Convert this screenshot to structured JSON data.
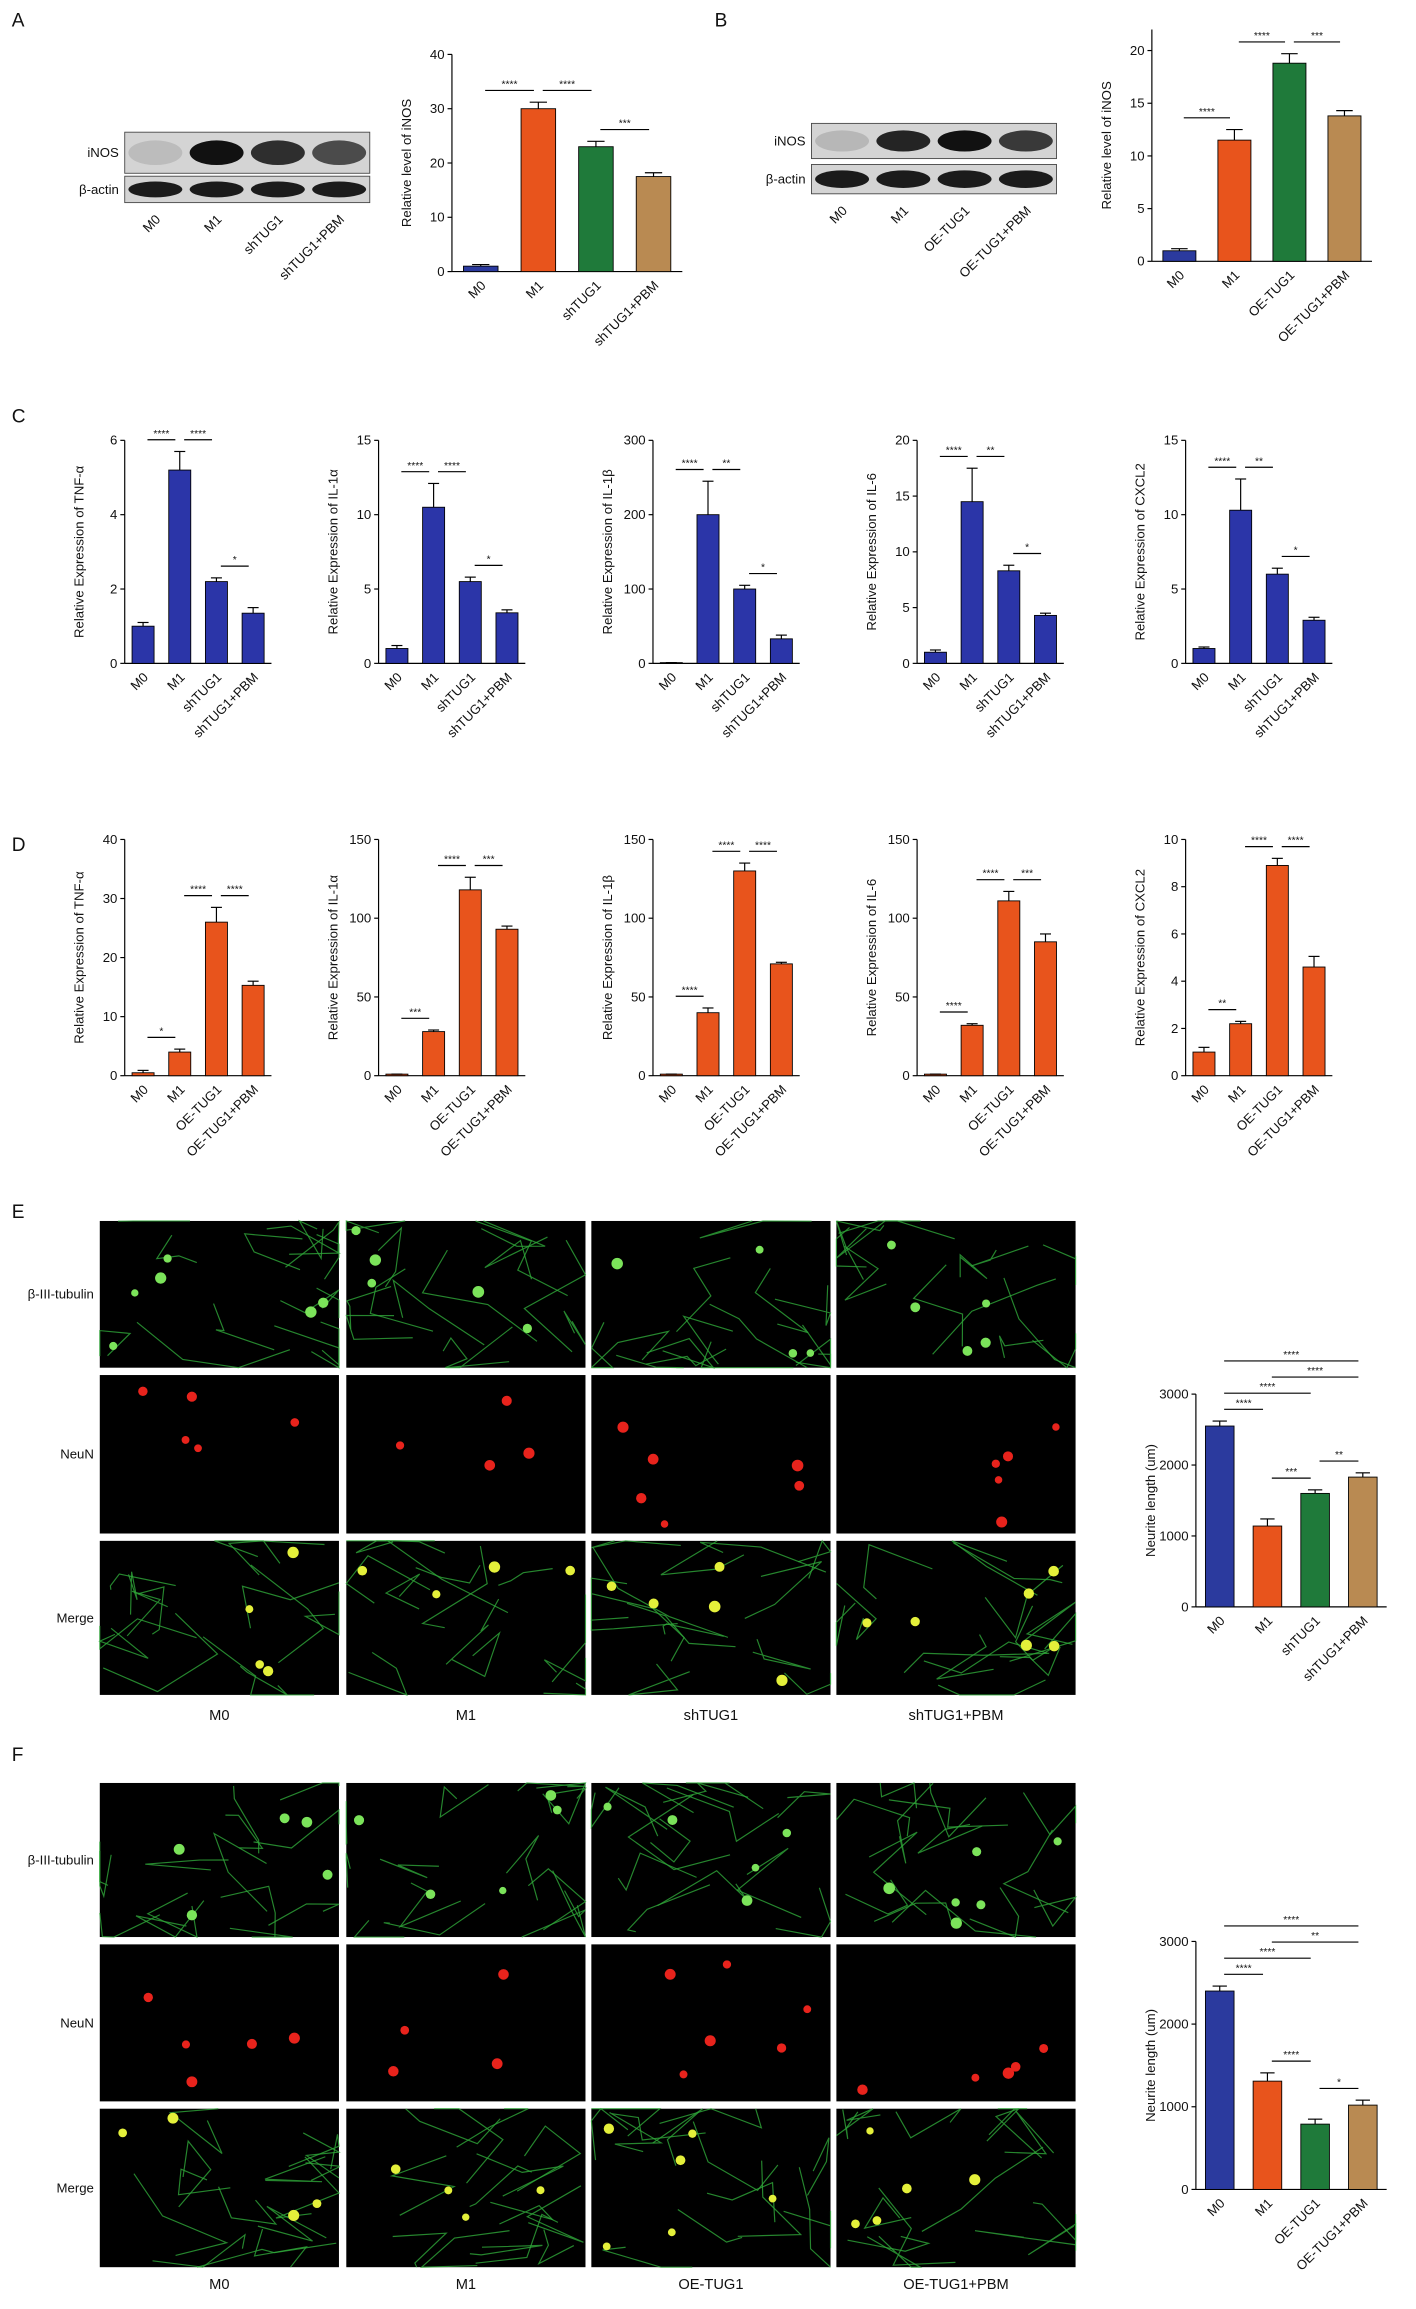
{
  "panel_labels": [
    "A",
    "B",
    "C",
    "D",
    "E",
    "F"
  ],
  "blots": [
    {
      "rows": [
        "iNOS",
        "β-actin"
      ],
      "lanes": [
        "M0",
        "M1",
        "shTUG1",
        "shTUG1+PBM"
      ]
    },
    {
      "rows": [
        "iNOS",
        "β-actin"
      ],
      "lanes": [
        "M0",
        "M1",
        "OE-TUG1",
        "OE-TUG1+PBM"
      ]
    }
  ],
  "micrographs": [
    {
      "rows": [
        "β-III-tubulin",
        "NeuN",
        "Merge"
      ],
      "columns": [
        "M0",
        "M1",
        "shTUG1",
        "shTUG1+PBM"
      ]
    },
    {
      "rows": [
        "β-III-tubulin",
        "NeuN",
        "Merge"
      ],
      "columns": [
        "M0",
        "M1",
        "OE-TUG1",
        "OE-TUG1+PBM"
      ]
    }
  ],
  "chart_data": [
    {
      "type": "bar",
      "y_label": "Relative  level of iNOS",
      "categories": [
        "M0",
        "M1",
        "shTUG1",
        "shTUG1+PBM"
      ],
      "values": [
        1,
        30,
        23,
        17.5
      ],
      "errors": [
        0.3,
        1.2,
        1,
        0.7
      ],
      "colors": [
        "#2b3a9e",
        "#e8541c",
        "#1f7a3a",
        "#b98a52"
      ],
      "ylim": [
        0,
        40
      ],
      "yticks": [
        0,
        10,
        20,
        30,
        40
      ],
      "significance": [
        {
          "between": [
            0,
            1
          ],
          "label": "****"
        },
        {
          "between": [
            1,
            2
          ],
          "label": "****"
        },
        {
          "between": [
            2,
            3
          ],
          "label": "***"
        }
      ]
    },
    {
      "type": "bar",
      "y_label": "Relative  level of iNOS",
      "categories": [
        "M0",
        "M1",
        "OE-TUG1",
        "OE-TUG1+PBM"
      ],
      "values": [
        1,
        11.5,
        18.8,
        13.8
      ],
      "errors": [
        0.2,
        1,
        0.9,
        0.5
      ],
      "colors": [
        "#2b3a9e",
        "#e8541c",
        "#1f7a3a",
        "#b98a52"
      ],
      "ylim": [
        0,
        22
      ],
      "yticks": [
        0,
        5,
        10,
        15,
        20
      ],
      "significance": [
        {
          "between": [
            0,
            1
          ],
          "label": "****"
        },
        {
          "between": [
            1,
            2
          ],
          "label": "****"
        },
        {
          "between": [
            2,
            3
          ],
          "label": "***"
        }
      ]
    },
    {
      "type": "bar",
      "y_label": "Relative Expression of TNF-α",
      "categories": [
        "M0",
        "M1",
        "shTUG1",
        "shTUG1+PBM"
      ],
      "values": [
        1,
        5.2,
        2.2,
        1.35
      ],
      "errors": [
        0.1,
        0.5,
        0.1,
        0.15
      ],
      "colors": [
        "#2b35a8",
        "#2b35a8",
        "#2b35a8",
        "#2b35a8"
      ],
      "ylim": [
        0,
        6
      ],
      "yticks": [
        0,
        2,
        4,
        6
      ],
      "significance": [
        {
          "between": [
            0,
            1
          ],
          "label": "****"
        },
        {
          "between": [
            1,
            2
          ],
          "label": "****"
        },
        {
          "between": [
            2,
            3
          ],
          "label": "*"
        }
      ]
    },
    {
      "type": "bar",
      "y_label": "Relative Expression of IL-1α",
      "categories": [
        "M0",
        "M1",
        "shTUG1",
        "shTUG1+PBM"
      ],
      "values": [
        1,
        10.5,
        5.5,
        3.4
      ],
      "errors": [
        0.2,
        1.6,
        0.3,
        0.2
      ],
      "colors": [
        "#2b35a8",
        "#2b35a8",
        "#2b35a8",
        "#2b35a8"
      ],
      "ylim": [
        0,
        15
      ],
      "yticks": [
        0,
        5,
        10,
        15
      ],
      "significance": [
        {
          "between": [
            0,
            1
          ],
          "label": "****"
        },
        {
          "between": [
            1,
            2
          ],
          "label": "****"
        },
        {
          "between": [
            2,
            3
          ],
          "label": "*"
        }
      ]
    },
    {
      "type": "bar",
      "y_label": "Relative Expression of IL-1β",
      "categories": [
        "M0",
        "M1",
        "shTUG1",
        "shTUG1+PBM"
      ],
      "values": [
        1,
        200,
        100,
        33
      ],
      "errors": [
        0,
        45,
        5,
        5
      ],
      "colors": [
        "#2b35a8",
        "#2b35a8",
        "#2b35a8",
        "#2b35a8"
      ],
      "ylim": [
        0,
        300
      ],
      "yticks": [
        0,
        100,
        200,
        300
      ],
      "significance": [
        {
          "between": [
            0,
            1
          ],
          "label": "****"
        },
        {
          "between": [
            1,
            2
          ],
          "label": "**"
        },
        {
          "between": [
            2,
            3
          ],
          "label": "*"
        }
      ]
    },
    {
      "type": "bar",
      "y_label": "Relative Expression of IL-6",
      "categories": [
        "M0",
        "M1",
        "shTUG1",
        "shTUG1+PBM"
      ],
      "values": [
        1,
        14.5,
        8.3,
        4.3
      ],
      "errors": [
        0.2,
        3,
        0.5,
        0.2
      ],
      "colors": [
        "#2b35a8",
        "#2b35a8",
        "#2b35a8",
        "#2b35a8"
      ],
      "ylim": [
        0,
        20
      ],
      "yticks": [
        0,
        5,
        10,
        15,
        20
      ],
      "significance": [
        {
          "between": [
            0,
            1
          ],
          "label": "****"
        },
        {
          "between": [
            1,
            2
          ],
          "label": "**"
        },
        {
          "between": [
            2,
            3
          ],
          "label": "*"
        }
      ]
    },
    {
      "type": "bar",
      "y_label": "Relative Expression of CXCL2",
      "categories": [
        "M0",
        "M1",
        "shTUG1",
        "shTUG1+PBM"
      ],
      "values": [
        1,
        10.3,
        6,
        2.9
      ],
      "errors": [
        0.1,
        2.1,
        0.4,
        0.2
      ],
      "colors": [
        "#2b35a8",
        "#2b35a8",
        "#2b35a8",
        "#2b35a8"
      ],
      "ylim": [
        0,
        15
      ],
      "yticks": [
        0,
        5,
        10,
        15
      ],
      "significance": [
        {
          "between": [
            0,
            1
          ],
          "label": "****"
        },
        {
          "between": [
            1,
            2
          ],
          "label": "**"
        },
        {
          "between": [
            2,
            3
          ],
          "label": "*"
        }
      ]
    },
    {
      "type": "bar",
      "y_label": "Relative Expression of TNF-α",
      "categories": [
        "M0",
        "M1",
        "OE-TUG1",
        "OE-TUG1+PBM"
      ],
      "values": [
        0.5,
        4,
        26,
        15.3
      ],
      "errors": [
        0.4,
        0.5,
        2.5,
        0.7
      ],
      "colors": [
        "#e8541c",
        "#e8541c",
        "#e8541c",
        "#e8541c"
      ],
      "ylim": [
        0,
        40
      ],
      "yticks": [
        0,
        10,
        20,
        30,
        40
      ],
      "significance": [
        {
          "between": [
            0,
            1
          ],
          "label": "*"
        },
        {
          "between": [
            1,
            2
          ],
          "label": "****"
        },
        {
          "between": [
            2,
            3
          ],
          "label": "****"
        }
      ]
    },
    {
      "type": "bar",
      "y_label": "Relative Expression of IL-1α",
      "categories": [
        "M0",
        "M1",
        "OE-TUG1",
        "OE-TUG1+PBM"
      ],
      "values": [
        1,
        28,
        118,
        93
      ],
      "errors": [
        0,
        1,
        8,
        2
      ],
      "colors": [
        "#e8541c",
        "#e8541c",
        "#e8541c",
        "#e8541c"
      ],
      "ylim": [
        0,
        150
      ],
      "yticks": [
        0,
        50,
        100,
        150
      ],
      "significance": [
        {
          "between": [
            0,
            1
          ],
          "label": "***"
        },
        {
          "between": [
            1,
            2
          ],
          "label": "****"
        },
        {
          "between": [
            2,
            3
          ],
          "label": "***"
        }
      ]
    },
    {
      "type": "bar",
      "y_label": "Relative Expression of IL-1β",
      "categories": [
        "M0",
        "M1",
        "OE-TUG1",
        "OE-TUG1+PBM"
      ],
      "values": [
        1,
        40,
        130,
        71
      ],
      "errors": [
        0,
        3,
        5,
        1
      ],
      "colors": [
        "#e8541c",
        "#e8541c",
        "#e8541c",
        "#e8541c"
      ],
      "ylim": [
        0,
        150
      ],
      "yticks": [
        0,
        50,
        100,
        150
      ],
      "significance": [
        {
          "between": [
            0,
            1
          ],
          "label": "****"
        },
        {
          "between": [
            1,
            2
          ],
          "label": "****"
        },
        {
          "between": [
            2,
            3
          ],
          "label": "****"
        }
      ]
    },
    {
      "type": "bar",
      "y_label": "Relative Expression of IL-6",
      "categories": [
        "M0",
        "M1",
        "OE-TUG1",
        "OE-TUG1+PBM"
      ],
      "values": [
        1,
        32,
        111,
        85
      ],
      "errors": [
        0,
        1,
        6,
        5
      ],
      "colors": [
        "#e8541c",
        "#e8541c",
        "#e8541c",
        "#e8541c"
      ],
      "ylim": [
        0,
        150
      ],
      "yticks": [
        0,
        50,
        100,
        150
      ],
      "significance": [
        {
          "between": [
            0,
            1
          ],
          "label": "****"
        },
        {
          "between": [
            1,
            2
          ],
          "label": "****"
        },
        {
          "between": [
            2,
            3
          ],
          "label": "***"
        }
      ]
    },
    {
      "type": "bar",
      "y_label": "Relative Expression of CXCL2",
      "categories": [
        "M0",
        "M1",
        "OE-TUG1",
        "OE-TUG1+PBM"
      ],
      "values": [
        1,
        2.2,
        8.9,
        4.6
      ],
      "errors": [
        0.2,
        0.1,
        0.3,
        0.45
      ],
      "colors": [
        "#e8541c",
        "#e8541c",
        "#e8541c",
        "#e8541c"
      ],
      "ylim": [
        0,
        10
      ],
      "yticks": [
        0,
        2,
        4,
        6,
        8,
        10
      ],
      "significance": [
        {
          "between": [
            0,
            1
          ],
          "label": "**"
        },
        {
          "between": [
            1,
            2
          ],
          "label": "****"
        },
        {
          "between": [
            2,
            3
          ],
          "label": "****"
        }
      ]
    },
    {
      "type": "bar",
      "y_label": "Neurite length (um)",
      "categories": [
        "M0",
        "M1",
        "shTUG1",
        "shTUG1+PBM"
      ],
      "values": [
        2550,
        1140,
        1600,
        1830
      ],
      "errors": [
        70,
        100,
        50,
        60
      ],
      "colors": [
        "#2b3a9e",
        "#e8541c",
        "#1f7a3a",
        "#b98a52"
      ],
      "ylim": [
        0,
        3000
      ],
      "yticks": [
        0,
        1000,
        2000,
        3000
      ],
      "significance": [
        {
          "between": [
            0,
            1
          ],
          "label": "****"
        },
        {
          "between": [
            1,
            2
          ],
          "label": "***"
        },
        {
          "between": [
            2,
            3
          ],
          "label": "**"
        },
        {
          "between": [
            0,
            2
          ],
          "label": "****"
        },
        {
          "between": [
            1,
            3
          ],
          "label": "****"
        },
        {
          "between": [
            0,
            3
          ],
          "label": "****"
        }
      ]
    },
    {
      "type": "bar",
      "y_label": "Neurite length (um)",
      "categories": [
        "M0",
        "M1",
        "OE-TUG1",
        "OE-TUG1+PBM"
      ],
      "values": [
        2400,
        1310,
        790,
        1020
      ],
      "errors": [
        60,
        100,
        60,
        60
      ],
      "colors": [
        "#2b3a9e",
        "#e8541c",
        "#1f7a3a",
        "#b98a52"
      ],
      "ylim": [
        0,
        3000
      ],
      "yticks": [
        0,
        1000,
        2000,
        3000
      ],
      "significance": [
        {
          "between": [
            0,
            1
          ],
          "label": "****"
        },
        {
          "between": [
            2,
            3
          ],
          "label": "*"
        },
        {
          "between": [
            1,
            2
          ],
          "label": "****"
        },
        {
          "between": [
            0,
            2
          ],
          "label": "****"
        },
        {
          "between": [
            1,
            3
          ],
          "label": "**"
        },
        {
          "between": [
            0,
            3
          ],
          "label": "****"
        }
      ]
    }
  ]
}
